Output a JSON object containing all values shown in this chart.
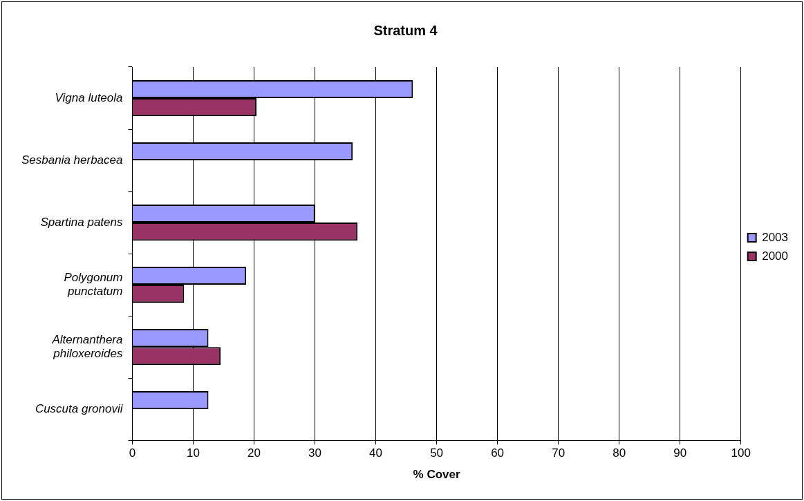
{
  "chart_data": {
    "type": "bar",
    "orientation": "horizontal",
    "title": "Stratum 4",
    "xlabel": "% Cover",
    "categories": [
      "Vigna luteola",
      "Sesbania herbacea",
      "Spartina patens",
      "Polygonum punctatum",
      "Alternanthera philoxeroides",
      "Cuscuta gronovii"
    ],
    "series": [
      {
        "name": "2003",
        "color": "#9999ff",
        "values": [
          46.1,
          36.2,
          30,
          18.7,
          12.5,
          12.5
        ]
      },
      {
        "name": "2000",
        "color": "#993366",
        "values": [
          20.4,
          null,
          37,
          8.5,
          14.5,
          null
        ]
      }
    ],
    "xlim": [
      0,
      100
    ],
    "xticks": [
      0,
      10,
      20,
      30,
      40,
      50,
      60,
      70,
      80,
      90,
      100
    ],
    "grid": "x",
    "legend": "right"
  }
}
